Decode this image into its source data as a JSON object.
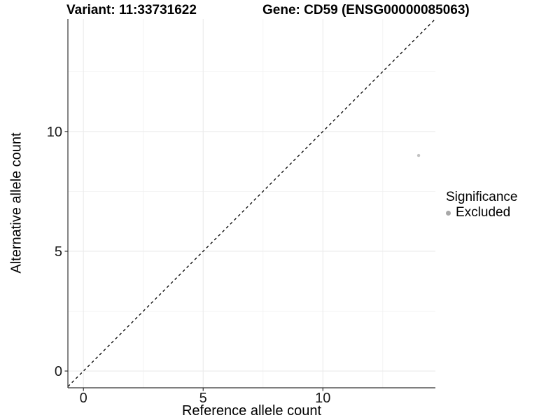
{
  "chart_data": {
    "type": "scatter",
    "title_left": "Variant: 11:33731622",
    "title_right": "Gene: CD59 (ENSG00000085063)",
    "xlabel": "Reference allele count",
    "ylabel": "Alternative allele count",
    "xlim": [
      -0.65,
      14.7
    ],
    "ylim": [
      -0.7,
      14.7
    ],
    "x_major_ticks": [
      0,
      5,
      10
    ],
    "y_major_ticks": [
      0,
      5,
      10
    ],
    "x_minor_gridlines": [
      2.5,
      7.5,
      12.5
    ],
    "y_minor_gridlines": [
      2.5,
      7.5,
      12.5
    ],
    "grid": "major-and-minor",
    "legend_position": "right",
    "reference_line": {
      "description": "identity line y = x",
      "slope": 1,
      "intercept": 0,
      "style": "dashed",
      "color": "#000000"
    },
    "series": [
      {
        "name": "Excluded",
        "color": "#c2c2c2",
        "points": [
          {
            "x": 14,
            "y": 9
          }
        ]
      }
    ],
    "legend": {
      "title": "Significance",
      "items": [
        {
          "label": "Excluded",
          "color": "#a8a8a8"
        }
      ]
    },
    "colors": {
      "background": "#ffffff",
      "grid_major": "#ebebeb",
      "grid_minor": "#f2f2f2",
      "axis_line": "#333333",
      "tick_label": "#1a1a1a",
      "title_text": "#000000"
    }
  }
}
